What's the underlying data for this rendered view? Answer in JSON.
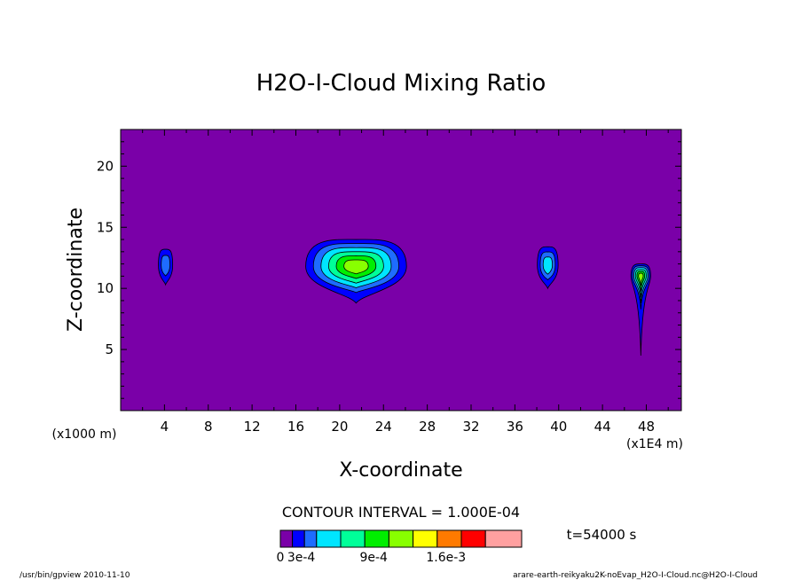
{
  "chart_data": {
    "type": "heatmap",
    "title": "H2O-I-Cloud Mixing Ratio",
    "xlabel": "X-coordinate",
    "ylabel": "Z-coordinate",
    "x_scale_note": "(x1E4 m)",
    "y_scale_note": "(x1000 m)",
    "xlim": [
      0,
      51.2
    ],
    "ylim": [
      0,
      23
    ],
    "x_ticks": [
      4,
      8,
      12,
      16,
      20,
      24,
      28,
      32,
      36,
      40,
      44,
      48
    ],
    "y_ticks": [
      5,
      10,
      15,
      20
    ],
    "contour_interval_text": "CONTOUR INTERVAL = 1.000E-04",
    "time_text": "t=54000 s",
    "colorbar": {
      "labels": [
        "0",
        "3e-4",
        "9e-4",
        "1.6e-3"
      ],
      "colors": [
        "#7a00a8",
        "#0000ff",
        "#1e6cff",
        "#00e5ff",
        "#00ff99",
        "#00ee00",
        "#88ff00",
        "#ffff00",
        "#ff7a00",
        "#ff0000",
        "#ffa0a0"
      ]
    },
    "background_color": "#7a00a8",
    "cloud_regions": [
      {
        "name": "cloud-x4",
        "x_center": 4.1,
        "z_center": 11.9,
        "max_level_index": 2
      },
      {
        "name": "cloud-x21",
        "x_center": 21.5,
        "z_center": 11.8,
        "max_level_index": 6
      },
      {
        "name": "cloud-x39",
        "x_center": 39.0,
        "z_center": 11.9,
        "max_level_index": 3
      },
      {
        "name": "cloud-x47",
        "x_center": 47.5,
        "z_center": 11.0,
        "max_level_index": 6
      }
    ]
  },
  "footer": {
    "left": "/usr/bin/gpview  2010-11-10",
    "right": "arare-earth-reikyaku2K-noEvap_H2O-I-Cloud.nc@H2O-I-Cloud"
  }
}
